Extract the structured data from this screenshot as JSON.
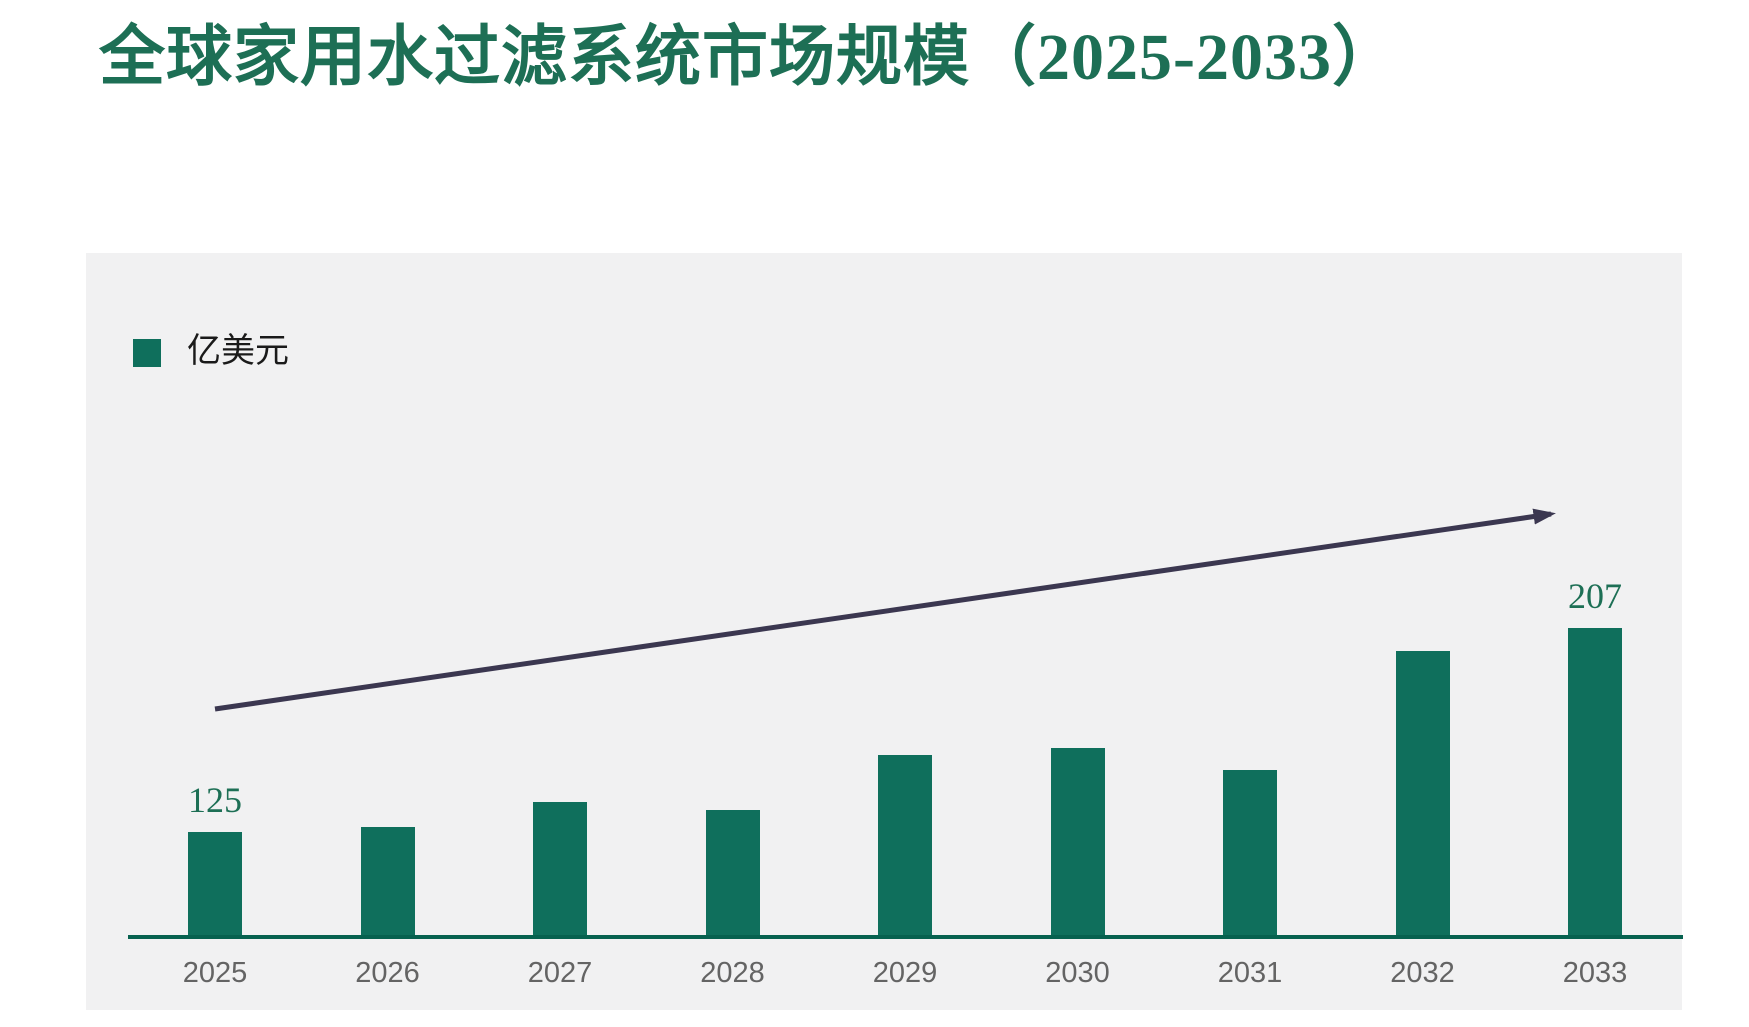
{
  "page": {
    "title": "全球家用水过滤系统市场规模（2025-2033）"
  },
  "legend": {
    "label": "亿美元"
  },
  "colors": {
    "bar": "#0f6f5c",
    "axis_line": "#07614f",
    "title_green": "#1d6f55",
    "data_label_green": "#1d6f55",
    "arrow": "#3b3750",
    "year_label_gray": "#646464",
    "panel_bg": "#f1f1f2",
    "page_bg": "#ffffff",
    "legend_text": "#1a1a1a"
  },
  "chart_data": {
    "type": "bar",
    "title": "全球家用水过滤系统市场规模（2025-2033）",
    "unit_label": "亿美元",
    "series_name": "亿美元",
    "categories": [
      "2025",
      "2026",
      "2027",
      "2028",
      "2029",
      "2030",
      "2031",
      "2032",
      "2033"
    ],
    "values": [
      125,
      127,
      137,
      134,
      156,
      159,
      150,
      198,
      207
    ],
    "data_labels": [
      "125",
      null,
      null,
      null,
      null,
      null,
      null,
      null,
      "207"
    ],
    "legend_position": "top-left",
    "grid": false,
    "y_axis": "hidden",
    "x_axis_line": true,
    "annotations": [
      {
        "type": "trend-arrow",
        "direction": "up-right"
      }
    ]
  }
}
